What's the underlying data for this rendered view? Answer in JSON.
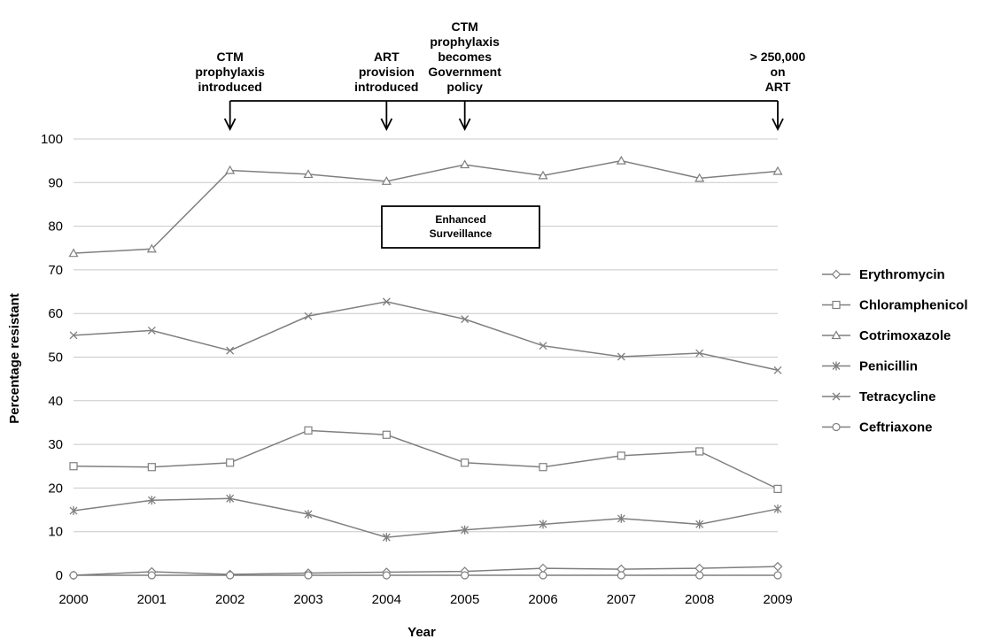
{
  "chart_data": {
    "type": "line",
    "xlabel": "Year",
    "ylabel": "Percentage resistant",
    "ylim": [
      0,
      100
    ],
    "yticks": [
      0,
      10,
      20,
      30,
      40,
      50,
      60,
      70,
      80,
      90,
      100
    ],
    "x": [
      2000,
      2001,
      2002,
      2003,
      2004,
      2005,
      2006,
      2007,
      2008,
      2009
    ],
    "grid": "horizontal",
    "legend_position": "right",
    "line_color": "#7f7f7f",
    "series": [
      {
        "name": "Erythromycin",
        "marker": "diamond",
        "values": [
          0,
          0.8,
          0.2,
          0.5,
          0.7,
          0.9,
          1.6,
          1.4,
          1.6,
          2.0
        ]
      },
      {
        "name": "Chloramphenicol",
        "marker": "square",
        "values": [
          25,
          24.8,
          25.8,
          33.2,
          32.2,
          25.8,
          24.8,
          27.4,
          28.4,
          19.8
        ]
      },
      {
        "name": "Cotrimoxazole",
        "marker": "triangle",
        "values": [
          73.8,
          74.8,
          92.8,
          91.9,
          90.3,
          94.1,
          91.6,
          95.0,
          91.0,
          92.6
        ]
      },
      {
        "name": "Penicillin",
        "marker": "star",
        "values": [
          14.8,
          17.2,
          17.6,
          14.0,
          8.7,
          10.4,
          11.7,
          13.0,
          11.7,
          15.2
        ]
      },
      {
        "name": "Tetracycline",
        "marker": "x",
        "values": [
          55.0,
          56.1,
          51.5,
          59.4,
          62.7,
          58.7,
          52.6,
          50.1,
          50.9,
          47.0
        ]
      },
      {
        "name": "Ceftriaxone",
        "marker": "circle",
        "values": [
          0,
          0,
          0,
          0,
          0,
          0,
          0,
          0,
          0,
          0
        ]
      }
    ],
    "annotations": [
      {
        "year": 2002,
        "lines": [
          "CTM",
          "prophylaxis",
          "introduced"
        ]
      },
      {
        "year": 2004,
        "lines": [
          "ART",
          "provision",
          "introduced"
        ]
      },
      {
        "year": 2005,
        "lines": [
          "CTM",
          "prophylaxis",
          "becomes",
          "Government",
          "policy"
        ]
      },
      {
        "year": 2009,
        "lines": [
          "> 250,000",
          "on",
          "ART"
        ]
      }
    ],
    "callout_box": {
      "lines": [
        "Enhanced",
        "Surveillance"
      ]
    }
  }
}
